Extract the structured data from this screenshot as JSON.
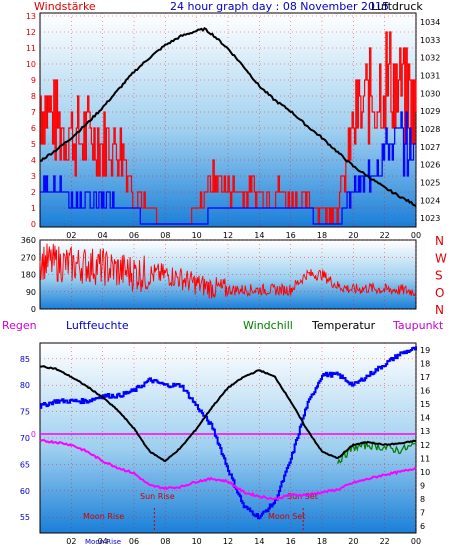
{
  "header": {
    "left_title": "Windstärke",
    "center_title": "24 hour graph day : 08 November 2015",
    "right_title": "Luftdruck"
  },
  "wind_panel": {
    "left_ticks": [
      "0",
      "1",
      "2",
      "3",
      "4",
      "5",
      "6",
      "7",
      "8",
      "9",
      "10",
      "11",
      "12",
      "13"
    ],
    "right_ticks": [
      "1023",
      "1024",
      "1025",
      "1026",
      "1027",
      "1028",
      "1029",
      "1030",
      "1031",
      "1032",
      "1033",
      "1034"
    ],
    "x_ticks": [
      "02",
      "04",
      "06",
      "08",
      "10",
      "12",
      "14",
      "16",
      "18",
      "20",
      "22",
      "00"
    ]
  },
  "direction_panel": {
    "left_ticks": [
      "0",
      "90",
      "180",
      "270",
      "360"
    ],
    "compass_labels": [
      "N",
      "W",
      "S",
      "O",
      "N"
    ]
  },
  "lower_header": {
    "regen": "Regen",
    "luftfeuchte": "Luftfeuchte",
    "windchill": "Windchill",
    "temperatur": "Temperatur",
    "taupunkt": "Taupunkt"
  },
  "lower_panel": {
    "left_ticks": [
      "55",
      "60",
      "65",
      "70",
      "75",
      "80",
      "85"
    ],
    "right_ticks": [
      "6",
      "7",
      "8",
      "9",
      "10",
      "11",
      "12",
      "13",
      "14",
      "15",
      "16",
      "17",
      "18",
      "19"
    ],
    "zero_label": "0",
    "x_ticks": [
      "02",
      "04",
      "06",
      "08",
      "10",
      "12",
      "14",
      "16",
      "18",
      "20",
      "22",
      "00"
    ],
    "annotations": {
      "sun_rise": "Sun Rise",
      "sun_set": "Sun Set",
      "moon_rise": "Moon Rise",
      "moon_set": "Moon Set",
      "moon_rise_axis": "Moon Rise"
    }
  },
  "chart_data": [
    {
      "type": "line",
      "name_left": "Windstärke",
      "name_right": "Luftdruck",
      "x_unit": "hour",
      "ylim_left": [
        0,
        13
      ],
      "ylim_right": [
        1022.5,
        1034.5
      ],
      "pressure": {
        "x": [
          0,
          1,
          2,
          3,
          4,
          5,
          6,
          7,
          8,
          9,
          10,
          10.5,
          11,
          12,
          13,
          14,
          15,
          16,
          17,
          18,
          19,
          20,
          21,
          22,
          23,
          24
        ],
        "values": [
          1026.2,
          1026.8,
          1027.5,
          1028.3,
          1029.2,
          1030.2,
          1031.2,
          1032.0,
          1032.7,
          1033.2,
          1033.5,
          1033.6,
          1033.3,
          1032.5,
          1031.5,
          1030.4,
          1029.6,
          1029.0,
          1028.2,
          1027.5,
          1026.7,
          1025.9,
          1025.3,
          1024.7,
          1024.2,
          1023.7
        ]
      },
      "wind_gust_range": {
        "x": [
          0,
          1,
          2,
          3,
          4,
          5,
          6,
          7,
          8,
          9,
          10,
          11,
          12,
          13,
          14,
          15,
          16,
          17,
          18,
          19,
          20,
          21,
          22,
          23,
          24
        ],
        "values": [
          11,
          9,
          8,
          8,
          7,
          7,
          3,
          1,
          0,
          0,
          1,
          4,
          3,
          3,
          3,
          3,
          2,
          2,
          1,
          1,
          9,
          11,
          13,
          12,
          10
        ]
      },
      "wind_mean_range": {
        "x": [
          0,
          1,
          2,
          3,
          4,
          5,
          6,
          7,
          8,
          9,
          10,
          11,
          12,
          13,
          14,
          15,
          16,
          17,
          18,
          19,
          20,
          21,
          22,
          23,
          24
        ],
        "values": [
          3,
          3,
          2,
          2,
          2,
          2,
          1,
          0,
          0,
          0,
          0,
          1,
          1,
          1,
          1,
          1,
          1,
          1,
          0,
          0,
          3,
          4,
          6,
          7,
          6
        ]
      }
    },
    {
      "type": "line",
      "name": "Windrichtung",
      "x_unit": "hour",
      "ylim": [
        0,
        360
      ],
      "x": [
        0,
        1,
        2,
        3,
        4,
        5,
        6,
        7,
        8,
        9,
        10,
        11,
        12,
        13,
        14,
        15,
        16,
        17,
        18,
        19,
        20,
        21,
        22,
        23,
        24
      ],
      "values": [
        250,
        240,
        230,
        230,
        220,
        200,
        190,
        180,
        180,
        160,
        130,
        110,
        100,
        100,
        100,
        100,
        100,
        180,
        180,
        120,
        100,
        110,
        100,
        100,
        90
      ]
    },
    {
      "type": "line",
      "x_unit": "hour",
      "ylim_left": [
        52,
        88
      ],
      "ylim_right": [
        5.5,
        19.5
      ],
      "humidity": {
        "name": "Luftfeuchte",
        "x": [
          0,
          1,
          2,
          3,
          4,
          5,
          6,
          7,
          8,
          9,
          10,
          11,
          12,
          13,
          14,
          15,
          16,
          17,
          18,
          19,
          20,
          21,
          22,
          23,
          24
        ],
        "values": [
          76,
          77,
          77,
          77,
          78,
          78,
          79,
          81,
          80,
          80,
          76,
          72,
          64,
          57,
          55,
          58,
          66,
          76,
          82,
          82,
          80,
          82,
          84,
          86,
          87
        ]
      },
      "temperature": {
        "name": "Temperatur",
        "x": [
          0,
          1,
          2,
          3,
          4,
          5,
          6,
          7,
          8,
          9,
          10,
          11,
          12,
          13,
          14,
          15,
          16,
          17,
          18,
          19,
          20,
          21,
          22,
          23,
          24
        ],
        "values": [
          17.8,
          17.6,
          17.0,
          16.3,
          15.5,
          14.5,
          13.2,
          11.5,
          10.8,
          11.8,
          13.2,
          14.8,
          16.2,
          17.0,
          17.5,
          17.0,
          15.2,
          13.2,
          11.5,
          11.0,
          12.0,
          12.2,
          12.0,
          12.1,
          12.3
        ]
      },
      "windchill": {
        "name": "Windchill",
        "x": [
          19,
          20,
          21,
          22,
          23,
          24
        ],
        "values": [
          10.8,
          11.8,
          12.0,
          11.8,
          11.6,
          12.0
        ]
      },
      "dewpoint": {
        "name": "Taupunkt",
        "x": [
          0,
          1,
          2,
          3,
          4,
          5,
          6,
          7,
          8,
          9,
          10,
          11,
          12,
          13,
          14,
          15,
          16,
          17,
          18,
          19,
          20,
          21,
          22,
          23,
          24
        ],
        "values": [
          12.3,
          12.2,
          12.0,
          11.5,
          10.8,
          10.3,
          9.9,
          9.0,
          8.8,
          8.9,
          9.3,
          9.5,
          9.3,
          8.5,
          8.2,
          8.0,
          8.3,
          8.3,
          8.5,
          8.7,
          9.2,
          9.5,
          9.8,
          10.0,
          10.3
        ]
      },
      "rain": {
        "name": "Regen",
        "value": 0
      }
    }
  ],
  "colors": {
    "background": "#ffffff",
    "panel_top": "#ffffff",
    "panel_bottom": "#1a7fd8",
    "axis_red": "#e00000",
    "grid_red": "#ff0000",
    "wind_gust": "#ff0000",
    "wind_mean": "#0000ff",
    "pressure": "#000000",
    "direction": "#ff0000",
    "humidity": "#0000ff",
    "temperature": "#000000",
    "windchill": "#008000",
    "dewpoint": "#ff00ff",
    "regen": "#cc00cc",
    "luftfeuchte": "#0000cc",
    "title_blue": "#0000cc",
    "annotation": "#cc0000"
  }
}
